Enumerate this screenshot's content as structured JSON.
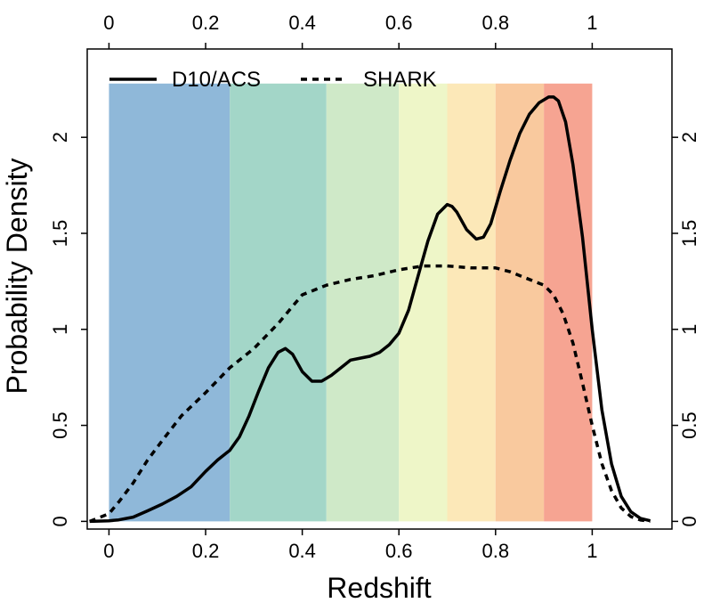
{
  "chart_data": {
    "type": "line",
    "xlabel": "Redshift",
    "ylabel": "Probability Density",
    "xlim": [
      -0.045,
      1.165
    ],
    "ylim": [
      -0.04,
      2.46
    ],
    "x_ticks": [
      0,
      0.2,
      0.4,
      0.6,
      0.8,
      1
    ],
    "x_tick_labels": [
      "0",
      "0.2",
      "0.4",
      "0.6",
      "0.8",
      "1"
    ],
    "y_ticks": [
      0,
      0.5,
      1,
      1.5,
      2
    ],
    "y_tick_labels": [
      "0",
      "0.5",
      "1",
      "1.5",
      "2"
    ],
    "bands": [
      {
        "x0": 0.0,
        "x1": 0.25,
        "color": "#8fb8d9"
      },
      {
        "x0": 0.25,
        "x1": 0.45,
        "color": "#a3d6c8"
      },
      {
        "x0": 0.45,
        "x1": 0.6,
        "color": "#cfe9c8"
      },
      {
        "x0": 0.6,
        "x1": 0.7,
        "color": "#eef6c8"
      },
      {
        "x0": 0.7,
        "x1": 0.8,
        "color": "#fce8b8"
      },
      {
        "x0": 0.8,
        "x1": 0.9,
        "color": "#f9c99e"
      },
      {
        "x0": 0.9,
        "x1": 1.0,
        "color": "#f6a492"
      }
    ],
    "band_top": 2.28,
    "series": [
      {
        "name": "D10/ACS",
        "style": "solid",
        "x": [
          -0.04,
          0.0,
          0.02,
          0.05,
          0.08,
          0.11,
          0.14,
          0.17,
          0.2,
          0.225,
          0.25,
          0.27,
          0.29,
          0.31,
          0.33,
          0.35,
          0.365,
          0.38,
          0.4,
          0.42,
          0.44,
          0.46,
          0.48,
          0.5,
          0.52,
          0.54,
          0.56,
          0.58,
          0.6,
          0.62,
          0.64,
          0.66,
          0.68,
          0.7,
          0.71,
          0.72,
          0.74,
          0.76,
          0.775,
          0.79,
          0.81,
          0.83,
          0.85,
          0.87,
          0.89,
          0.91,
          0.92,
          0.93,
          0.945,
          0.96,
          0.98,
          1.0,
          1.02,
          1.04,
          1.06,
          1.08,
          1.1,
          1.12
        ],
        "y": [
          0.0,
          0.003,
          0.008,
          0.022,
          0.055,
          0.09,
          0.13,
          0.18,
          0.26,
          0.32,
          0.37,
          0.44,
          0.55,
          0.68,
          0.8,
          0.88,
          0.9,
          0.87,
          0.78,
          0.73,
          0.73,
          0.76,
          0.8,
          0.84,
          0.85,
          0.86,
          0.88,
          0.92,
          0.98,
          1.1,
          1.28,
          1.46,
          1.6,
          1.65,
          1.64,
          1.61,
          1.52,
          1.47,
          1.48,
          1.55,
          1.72,
          1.88,
          2.02,
          2.12,
          2.18,
          2.21,
          2.21,
          2.19,
          2.08,
          1.86,
          1.48,
          1.0,
          0.58,
          0.3,
          0.13,
          0.05,
          0.015,
          0.003
        ]
      },
      {
        "name": "SHARK",
        "style": "dashed",
        "x": [
          -0.04,
          0.0,
          0.02,
          0.05,
          0.08,
          0.11,
          0.15,
          0.2,
          0.25,
          0.3,
          0.35,
          0.4,
          0.45,
          0.5,
          0.55,
          0.6,
          0.65,
          0.7,
          0.75,
          0.8,
          0.83,
          0.86,
          0.9,
          0.92,
          0.94,
          0.96,
          0.98,
          1.0,
          1.02,
          1.04,
          1.06,
          1.08,
          1.1,
          1.12
        ],
        "y": [
          0.0,
          0.04,
          0.1,
          0.2,
          0.32,
          0.42,
          0.55,
          0.67,
          0.8,
          0.9,
          1.03,
          1.18,
          1.23,
          1.26,
          1.28,
          1.31,
          1.33,
          1.33,
          1.32,
          1.32,
          1.3,
          1.27,
          1.23,
          1.18,
          1.08,
          0.93,
          0.72,
          0.5,
          0.3,
          0.16,
          0.07,
          0.025,
          0.007,
          0.001
        ]
      }
    ]
  }
}
